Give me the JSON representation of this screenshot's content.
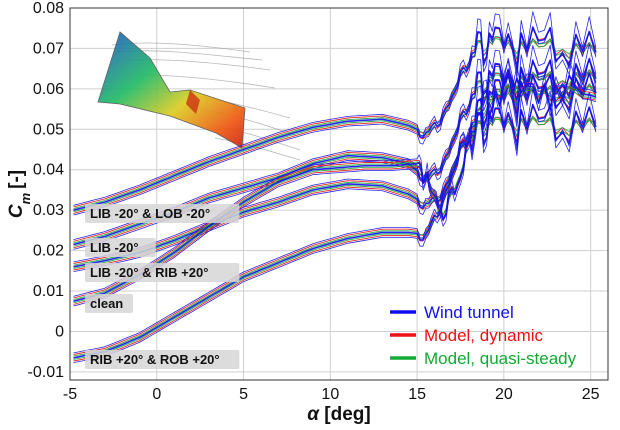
{
  "chart_data": {
    "type": "line",
    "xlabel_symbol": "α",
    "xlabel_unit": "[deg]",
    "ylabel_main": "C",
    "ylabel_sub": "m",
    "ylabel_unit": "[-]",
    "xlim": [
      -5,
      26
    ],
    "ylim": [
      -0.012,
      0.08
    ],
    "xticks": [
      -5,
      0,
      5,
      10,
      15,
      20,
      25
    ],
    "yticks": [
      -0.01,
      0,
      0.01,
      0.02,
      0.03,
      0.04,
      0.05,
      0.06,
      0.07,
      0.08
    ],
    "ytick_labels": [
      "-0.01",
      "0",
      "0.01",
      "0.02",
      "0.03",
      "0.04",
      "0.05",
      "0.06",
      "0.07",
      "0.08"
    ],
    "grid": true,
    "legend_position": "bottom-right",
    "legend": [
      {
        "label": "Wind tunnel",
        "color": "#1010ee"
      },
      {
        "label": "Model, dynamic",
        "color": "#ee1111"
      },
      {
        "label": "Model, quasi-steady",
        "color": "#11aa33"
      }
    ],
    "series": [
      {
        "label": "LIB -20° & LOB -20°",
        "x": [
          -4.8,
          -3,
          -1,
          1,
          3,
          5,
          7,
          9,
          11,
          13,
          14.5,
          15.5,
          16.5,
          17.5,
          18.5,
          19.5,
          21,
          23,
          25.3
        ],
        "y": [
          0.03,
          0.032,
          0.035,
          0.0385,
          0.042,
          0.045,
          0.048,
          0.0505,
          0.052,
          0.0525,
          0.051,
          0.049,
          0.053,
          0.063,
          0.07,
          0.071,
          0.07,
          0.07,
          0.069
        ]
      },
      {
        "label": "LIB -20°",
        "x": [
          -4.8,
          -3,
          -1,
          1,
          3,
          5,
          7,
          9,
          11,
          13,
          14.5,
          15.5,
          16.5,
          17.5,
          18.5,
          19.5,
          21,
          23,
          25.3
        ],
        "y": [
          0.0215,
          0.0235,
          0.0265,
          0.0295,
          0.033,
          0.0355,
          0.038,
          0.0415,
          0.0435,
          0.043,
          0.0415,
          0.038,
          0.041,
          0.052,
          0.06,
          0.062,
          0.0615,
          0.062,
          0.0625
        ]
      },
      {
        "label": "LIB -20° & RIB +20°",
        "x": [
          -4.8,
          -3,
          -1,
          1,
          3,
          5,
          7,
          9,
          11,
          13,
          14.5,
          15.5,
          16.5,
          17.5,
          18.5,
          19.5,
          21,
          23,
          25.3
        ],
        "y": [
          0.016,
          0.0175,
          0.0195,
          0.0225,
          0.026,
          0.0295,
          0.032,
          0.035,
          0.0365,
          0.036,
          0.034,
          0.0315,
          0.034,
          0.045,
          0.053,
          0.058,
          0.058,
          0.0585,
          0.059
        ]
      },
      {
        "label": "clean",
        "x": [
          -4.8,
          -3,
          -1,
          1,
          3,
          5,
          7,
          9,
          10.5,
          12,
          13.5,
          15,
          15.7,
          16.5,
          17.5,
          18.5,
          19.5,
          21,
          23,
          25.3
        ],
        "y": [
          0.0075,
          0.0095,
          0.014,
          0.0195,
          0.026,
          0.032,
          0.037,
          0.04,
          0.0405,
          0.041,
          0.041,
          0.0415,
          0.036,
          0.029,
          0.039,
          0.055,
          0.059,
          0.059,
          0.059,
          0.058
        ]
      },
      {
        "label": "RIB +20° & ROB +20°",
        "x": [
          -4.8,
          -3,
          -1,
          1,
          3,
          5,
          7,
          9,
          11,
          13,
          14.5,
          15.5,
          16.5,
          17.5,
          18.5,
          19.5,
          21,
          23,
          25.3
        ],
        "y": [
          -0.0065,
          -0.005,
          -0.0015,
          0.0035,
          0.0085,
          0.0135,
          0.017,
          0.0205,
          0.023,
          0.0245,
          0.0245,
          0.024,
          0.032,
          0.045,
          0.05,
          0.051,
          0.051,
          0.0505,
          0.0505
        ]
      }
    ]
  }
}
